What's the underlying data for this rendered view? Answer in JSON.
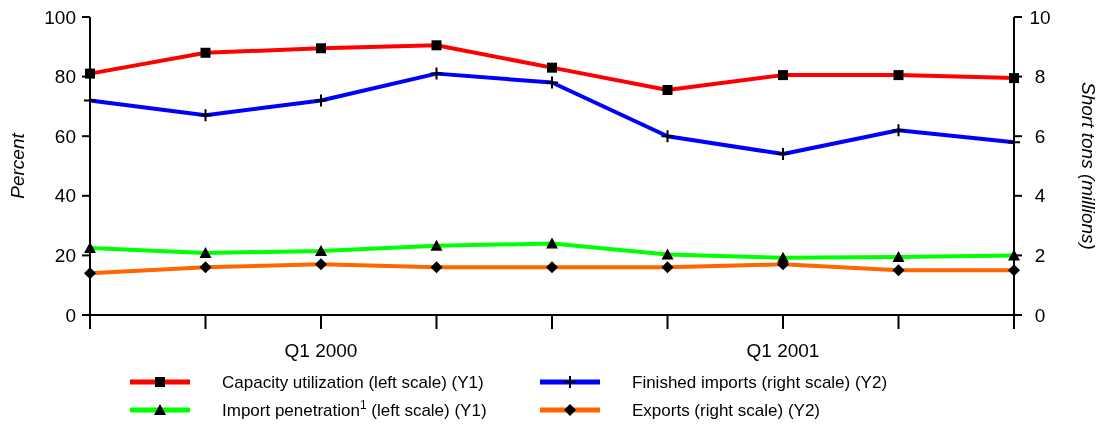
{
  "chart_data": {
    "type": "line",
    "categories": [
      null,
      null,
      "Q1 2000",
      null,
      null,
      null,
      "Q1 2001",
      null,
      null
    ],
    "ylabel": "Percent",
    "y2label": "Short tons (millions)",
    "ylim": [
      0,
      100
    ],
    "yticks": [
      0,
      20,
      40,
      60,
      80,
      100
    ],
    "y2lim": [
      0,
      10
    ],
    "y2ticks": [
      0,
      2,
      4,
      6,
      8,
      10
    ],
    "grid": false,
    "legend": "bottom",
    "series": [
      {
        "name": "Capacity utilization (left scale) (Y1)",
        "color": "#ff0000",
        "marker": "square",
        "values": [
          81,
          88,
          89.5,
          90.5,
          83,
          75.5,
          80.5,
          80.5,
          79.5
        ]
      },
      {
        "name": "Finished imports (right scale) (Y2)",
        "color": "#0000ff",
        "marker": "cross",
        "axis": "y2",
        "values": [
          7.2,
          6.7,
          7.2,
          8.1,
          7.8,
          6,
          5.4,
          6.2,
          5.8
        ]
      },
      {
        "name": "Import penetration$^{1}$ (left scale) (Y1)",
        "color": "#00ff00",
        "marker": "triangle",
        "values": [
          22.5,
          20.8,
          21.5,
          23.2,
          24,
          20.3,
          19.2,
          19.5,
          20
        ]
      },
      {
        "name": "Exports (right scale) (Y2)",
        "color": "#ff6600",
        "marker": "diamond",
        "axis": "y2",
        "values": [
          1.4,
          1.6,
          1.7,
          1.6,
          1.6,
          1.6,
          1.7,
          1.5,
          1.5
        ]
      }
    ]
  }
}
